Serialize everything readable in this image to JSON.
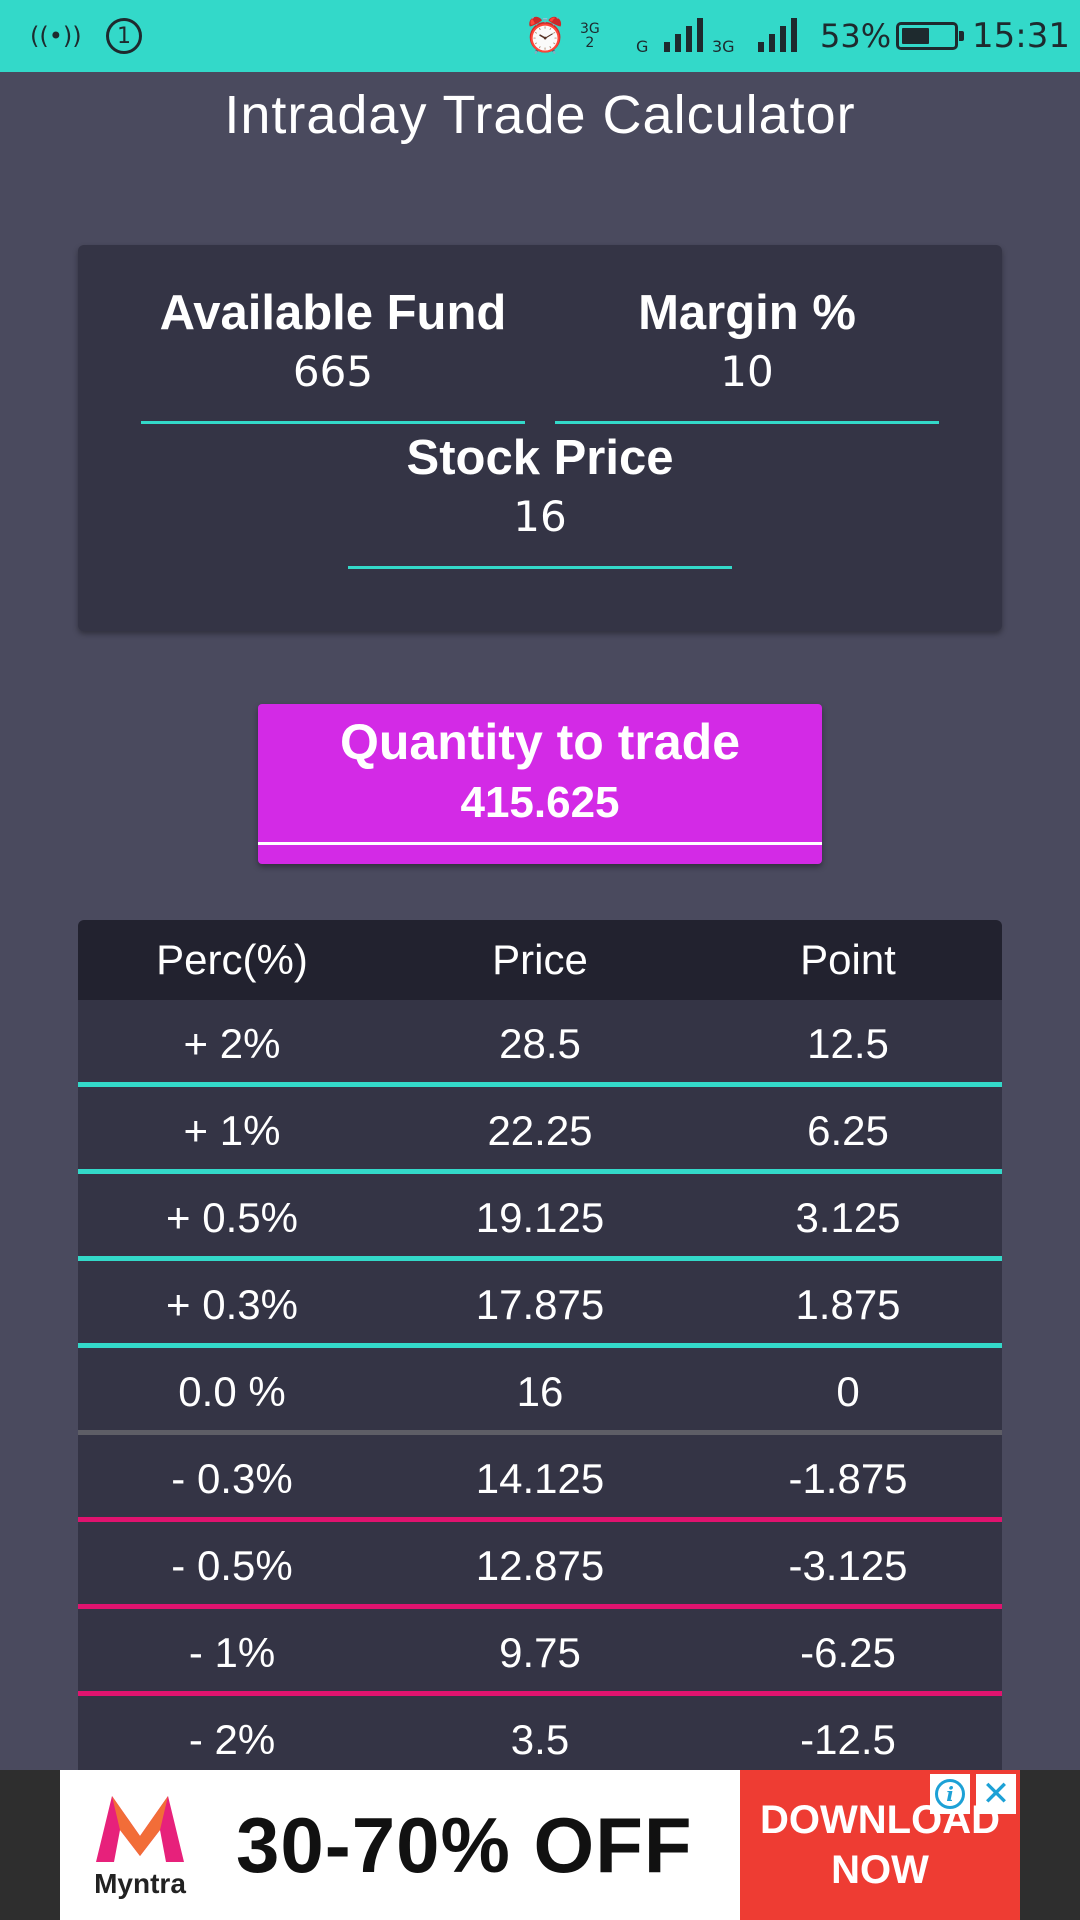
{
  "status_bar": {
    "hotspot_icon": "((•))",
    "notification_count": "1",
    "alarm_icon": "⏰",
    "net_type_1": "3G",
    "net_type_2": "2",
    "net_letter_g": "G",
    "net_type_3": "3G",
    "battery_percent": "53%",
    "battery_level": 0.53,
    "time": "15:31"
  },
  "app": {
    "title": "Intraday Trade Calculator"
  },
  "inputs": {
    "available_fund_label": "Available Fund",
    "available_fund_value": "665",
    "margin_label": "Margin %",
    "margin_value": "10",
    "stock_price_label": "Stock Price",
    "stock_price_value": "16"
  },
  "quantity": {
    "label": "Quantity to trade",
    "value": "415.625"
  },
  "table": {
    "headers": [
      "Perc(%)",
      "Price",
      "Point"
    ],
    "rows": [
      {
        "perc": "+ 2%",
        "price": "28.5",
        "point": "12.5",
        "kind": "up"
      },
      {
        "perc": "+ 1%",
        "price": "22.25",
        "point": "6.25",
        "kind": "up"
      },
      {
        "perc": "+ 0.5%",
        "price": "19.125",
        "point": "3.125",
        "kind": "up"
      },
      {
        "perc": "+ 0.3%",
        "price": "17.875",
        "point": "1.875",
        "kind": "up"
      },
      {
        "perc": "0.0 %",
        "price": "16",
        "point": "0",
        "kind": "neutral"
      },
      {
        "perc": "- 0.3%",
        "price": "14.125",
        "point": "-1.875",
        "kind": "down"
      },
      {
        "perc": "- 0.5%",
        "price": "12.875",
        "point": "-3.125",
        "kind": "down"
      },
      {
        "perc": "- 1%",
        "price": "9.75",
        "point": "-6.25",
        "kind": "down"
      },
      {
        "perc": "- 2%",
        "price": "3.5",
        "point": "-12.5",
        "kind": "down"
      }
    ]
  },
  "ad": {
    "brand": "Myntra",
    "offer": "30-70% OFF",
    "cta_line1": "DOWNLOAD",
    "cta_line2": "NOW",
    "info_icon": "i",
    "close_icon": "✕"
  },
  "colors": {
    "status_bar": "#33d9c9",
    "background": "#4a4a5e",
    "card": "#343445",
    "table_header": "#22222f",
    "accent_teal": "#33d9c9",
    "quantity_box": "#d32ae6",
    "down_separator": "#e0136f",
    "neutral_separator": "#5e5e66",
    "ad_cta": "#ee3c33"
  }
}
